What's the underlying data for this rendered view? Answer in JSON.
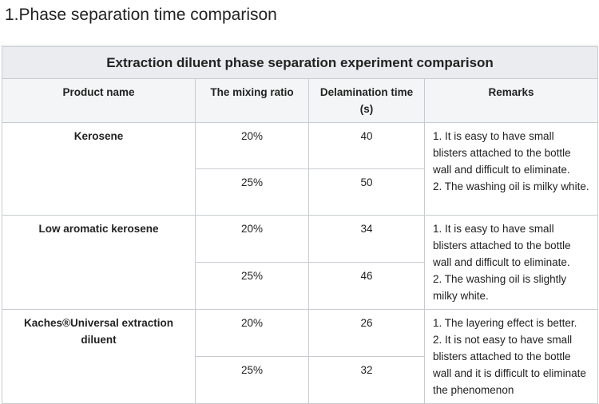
{
  "header": {
    "title": "1.Phase separation time comparison"
  },
  "table": {
    "caption": "Extraction diluent phase separation experiment comparison",
    "columns": [
      "Product name",
      "The mixing ratio",
      "Delamination time (s)",
      "Remarks"
    ],
    "groups": [
      {
        "product": "Kerosene",
        "rows": [
          [
            "20%",
            "40"
          ],
          [
            "25%",
            "50"
          ]
        ],
        "remarks": [
          "1. It is easy to have small blisters attached to the bottle wall and difficult to eliminate.",
          "2. The washing oil is milky white."
        ]
      },
      {
        "product": "Low aromatic kerosene",
        "rows": [
          [
            "20%",
            "34"
          ],
          [
            "25%",
            "46"
          ]
        ],
        "remarks": [
          "1. It is easy to have small blisters attached to the bottle wall and difficult to eliminate.",
          "2. The washing oil is slightly milky white."
        ]
      },
      {
        "product": "Kaches®Universal extraction diluent",
        "rows": [
          [
            "20%",
            "26"
          ],
          [
            "25%",
            "32"
          ]
        ],
        "remarks": [
          "1. The layering effect is better.",
          "2. It is not easy to have small blisters attached to the bottle wall and it is difficult to eliminate the phenomenon"
        ]
      }
    ]
  }
}
